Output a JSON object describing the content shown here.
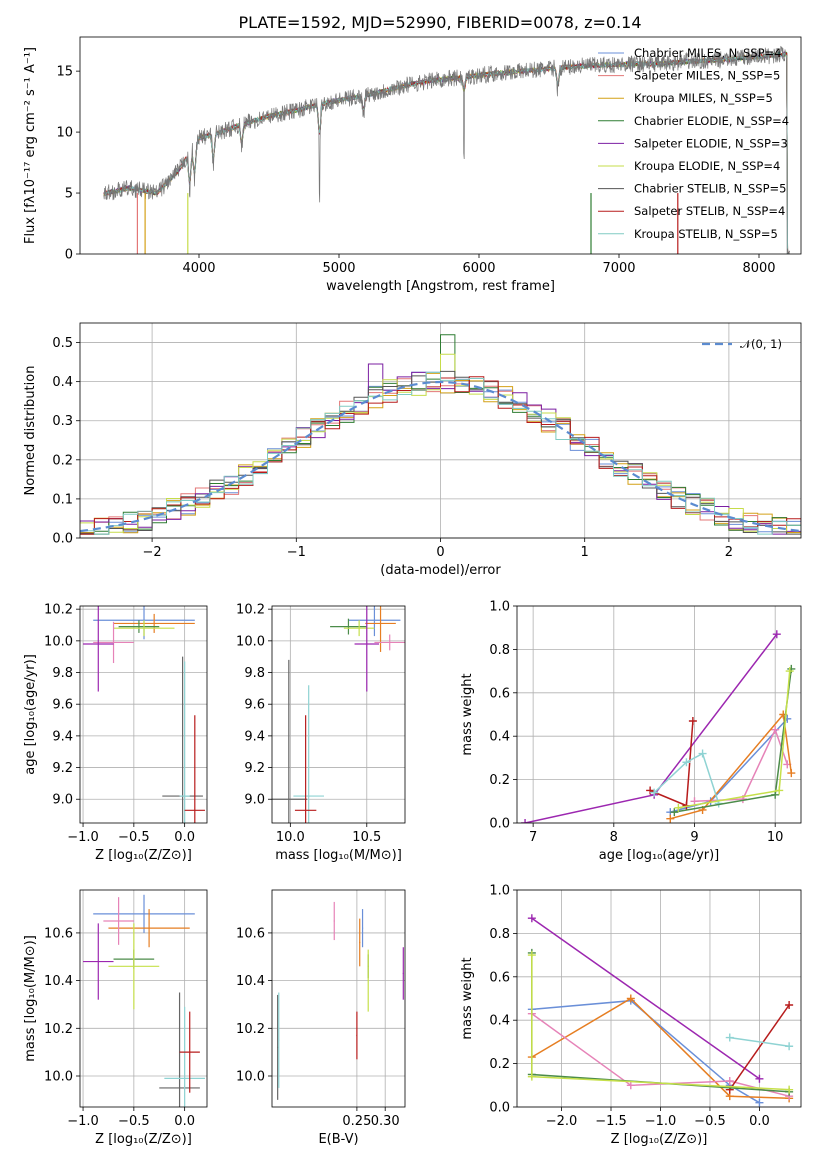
{
  "title": "PLATE=1592, MJD=52990, FIBERID=0078, z=0.14",
  "colors": {
    "c0": "#6a8fd8",
    "c1": "#e37777",
    "c2": "#d4a017",
    "c3": "#2e7d32",
    "c4": "#7b1fa2",
    "c5": "#c6dc4a",
    "c6": "#555555",
    "c7": "#b71c1c",
    "c8": "#80cbc4",
    "blue": "#6a8fd8",
    "orange": "#e67e22",
    "pink": "#e683b8",
    "purple": "#9c27b0",
    "lime": "#c6e04a",
    "teal": "#8fd3d3",
    "grey": "#666666",
    "darkred": "#b71c1c",
    "green": "#4c8c4a"
  },
  "chart_data": [
    {
      "id": "spectrum",
      "type": "line",
      "title": "PLATE=1592, MJD=52990, FIBERID=0078, z=0.14",
      "xlabel": "wavelength [Angstrom, rest frame]",
      "ylabel": "Flux [fλ10⁻¹⁷ erg cm⁻² s⁻¹ A⁻¹]",
      "xlim": [
        3150,
        8300
      ],
      "ylim": [
        0,
        17.8
      ],
      "xticks": [
        "4000",
        "5000",
        "6000",
        "7000",
        "8000"
      ],
      "xtick_values": [
        4000,
        5000,
        6000,
        7000,
        8000
      ],
      "yticks": [
        "0",
        "5",
        "10",
        "15"
      ],
      "ytick_values": [
        0,
        5,
        10,
        15
      ],
      "legend_position": "top-right",
      "legend": [
        "Chabrier MILES, N_SSP=4",
        "Salpeter MILES, N_SSP=5",
        "Kroupa MILES, N_SSP=5",
        "Chabrier ELODIE, N_SSP=4",
        "Salpeter ELODIE, N_SSP=3",
        "Kroupa ELODIE, N_SSP=4",
        "Chabrier STELIB, N_SSP=5",
        "Salpeter STELIB, N_SSP=4",
        "Kroupa STELIB, N_SSP=5"
      ],
      "continuum": {
        "x": [
          3300,
          3500,
          3700,
          3850,
          4000,
          4150,
          4300,
          4500,
          4700,
          4900,
          5100,
          5300,
          5500,
          5700,
          5900,
          6100,
          6300,
          6500,
          6700,
          6900,
          7100,
          7300,
          7500,
          7700,
          7900,
          8100,
          8200
        ],
        "y": [
          4.9,
          5.4,
          5.0,
          6.8,
          9.5,
          10.0,
          10.6,
          11.3,
          11.8,
          12.4,
          12.8,
          13.3,
          13.9,
          14.3,
          14.5,
          14.8,
          15.0,
          15.2,
          15.4,
          15.5,
          15.6,
          15.6,
          15.8,
          15.9,
          16.1,
          16.3,
          16.4
        ]
      }
    },
    {
      "id": "residuals",
      "type": "line",
      "xlabel": "(data-model)/error",
      "ylabel": "Normed distribution",
      "xlim": [
        -2.5,
        2.5
      ],
      "ylim": [
        0,
        0.55
      ],
      "xticks": [
        "−2",
        "−1",
        "0",
        "1",
        "2"
      ],
      "xtick_values": [
        -2,
        -1,
        0,
        1,
        2
      ],
      "yticks": [
        "0.0",
        "0.1",
        "0.2",
        "0.3",
        "0.4",
        "0.5"
      ],
      "ytick_values": [
        0,
        0.1,
        0.2,
        0.3,
        0.4,
        0.5
      ],
      "legend": [
        "𝒩(0, 1)"
      ],
      "legend_position": "top-right",
      "bin_width": 0.1
    },
    {
      "id": "age-vs-Z",
      "type": "scatter",
      "xlabel": "Z [log₁₀(Z/Z⊙)]",
      "ylabel": "age  [log₁₀(age/yr)]",
      "xlim": [
        -1.03,
        0.22
      ],
      "ylim": [
        8.85,
        10.22
      ],
      "xticks": [
        "−1.0",
        "−0.5",
        "0.0"
      ],
      "xtick_values": [
        -1.0,
        -0.5,
        0.0
      ],
      "yticks": [
        "9.0",
        "9.2",
        "9.4",
        "9.6",
        "9.8",
        "10.0",
        "10.2"
      ],
      "ytick_values": [
        9.0,
        9.2,
        9.4,
        9.6,
        9.8,
        10.0,
        10.2
      ]
    },
    {
      "id": "age-vs-mass",
      "type": "scatter",
      "xlabel": "mass [log₁₀(M/M⊙)]",
      "xlim": [
        9.88,
        10.75
      ],
      "ylim": [
        8.85,
        10.22
      ],
      "xticks": [
        "10.0",
        "10.5"
      ],
      "xtick_values": [
        10.0,
        10.5
      ],
      "yticks": [
        "9.0",
        "9.2",
        "9.4",
        "9.6",
        "9.8",
        "10.0",
        "10.2"
      ],
      "ytick_values": [
        9.0,
        9.2,
        9.4,
        9.6,
        9.8,
        10.0,
        10.2
      ]
    },
    {
      "id": "weight-vs-age",
      "type": "line",
      "xlabel": "age  [log₁₀(age/yr)]",
      "ylabel": "mass weight",
      "xlim": [
        6.8,
        10.32
      ],
      "ylim": [
        0,
        1.0
      ],
      "xticks": [
        "7",
        "8",
        "9",
        "10"
      ],
      "xtick_values": [
        7,
        8,
        9,
        10
      ],
      "yticks": [
        "0.0",
        "0.2",
        "0.4",
        "0.6",
        "0.8",
        "1.0"
      ],
      "ytick_values": [
        0,
        0.2,
        0.4,
        0.6,
        0.8,
        1.0
      ]
    },
    {
      "id": "mass-vs-Z",
      "type": "scatter",
      "xlabel": "Z [log₁₀(Z/Z⊙)]",
      "ylabel": "mass [log₁₀(M/M⊙)]",
      "xlim": [
        -1.03,
        0.22
      ],
      "ylim": [
        9.87,
        10.78
      ],
      "xticks": [
        "−1.0",
        "−0.5",
        "0.0"
      ],
      "xtick_values": [
        -1.0,
        -0.5,
        0.0
      ],
      "yticks": [
        "10.0",
        "10.2",
        "10.4",
        "10.6"
      ],
      "ytick_values": [
        10.0,
        10.2,
        10.4,
        10.6
      ]
    },
    {
      "id": "mass-vs-EBV",
      "type": "scatter",
      "xlabel": "E(B-V)",
      "xlim": [
        0.1,
        0.335
      ],
      "ylim": [
        9.87,
        10.78
      ],
      "xticks": [
        "0.25",
        "0.30"
      ],
      "xtick_values": [
        0.25,
        0.3
      ],
      "yticks": [
        "10.0",
        "10.2",
        "10.4",
        "10.6"
      ],
      "ytick_values": [
        10.0,
        10.2,
        10.4,
        10.6
      ]
    },
    {
      "id": "weight-vs-Z",
      "type": "line",
      "xlabel": "Z [log₁₀(Z/Z⊙)]",
      "ylabel": "mass weight",
      "xlim": [
        -2.45,
        0.42
      ],
      "ylim": [
        0,
        1.0
      ],
      "xticks": [
        "−2.0",
        "−1.5",
        "−1.0",
        "−0.5",
        "0.0"
      ],
      "xtick_values": [
        -2.0,
        -1.5,
        -1.0,
        -0.5,
        0.0
      ],
      "yticks": [
        "0.0",
        "0.2",
        "0.4",
        "0.6",
        "0.8",
        "1.0"
      ],
      "ytick_values": [
        0,
        0.2,
        0.4,
        0.6,
        0.8,
        1.0
      ]
    }
  ]
}
